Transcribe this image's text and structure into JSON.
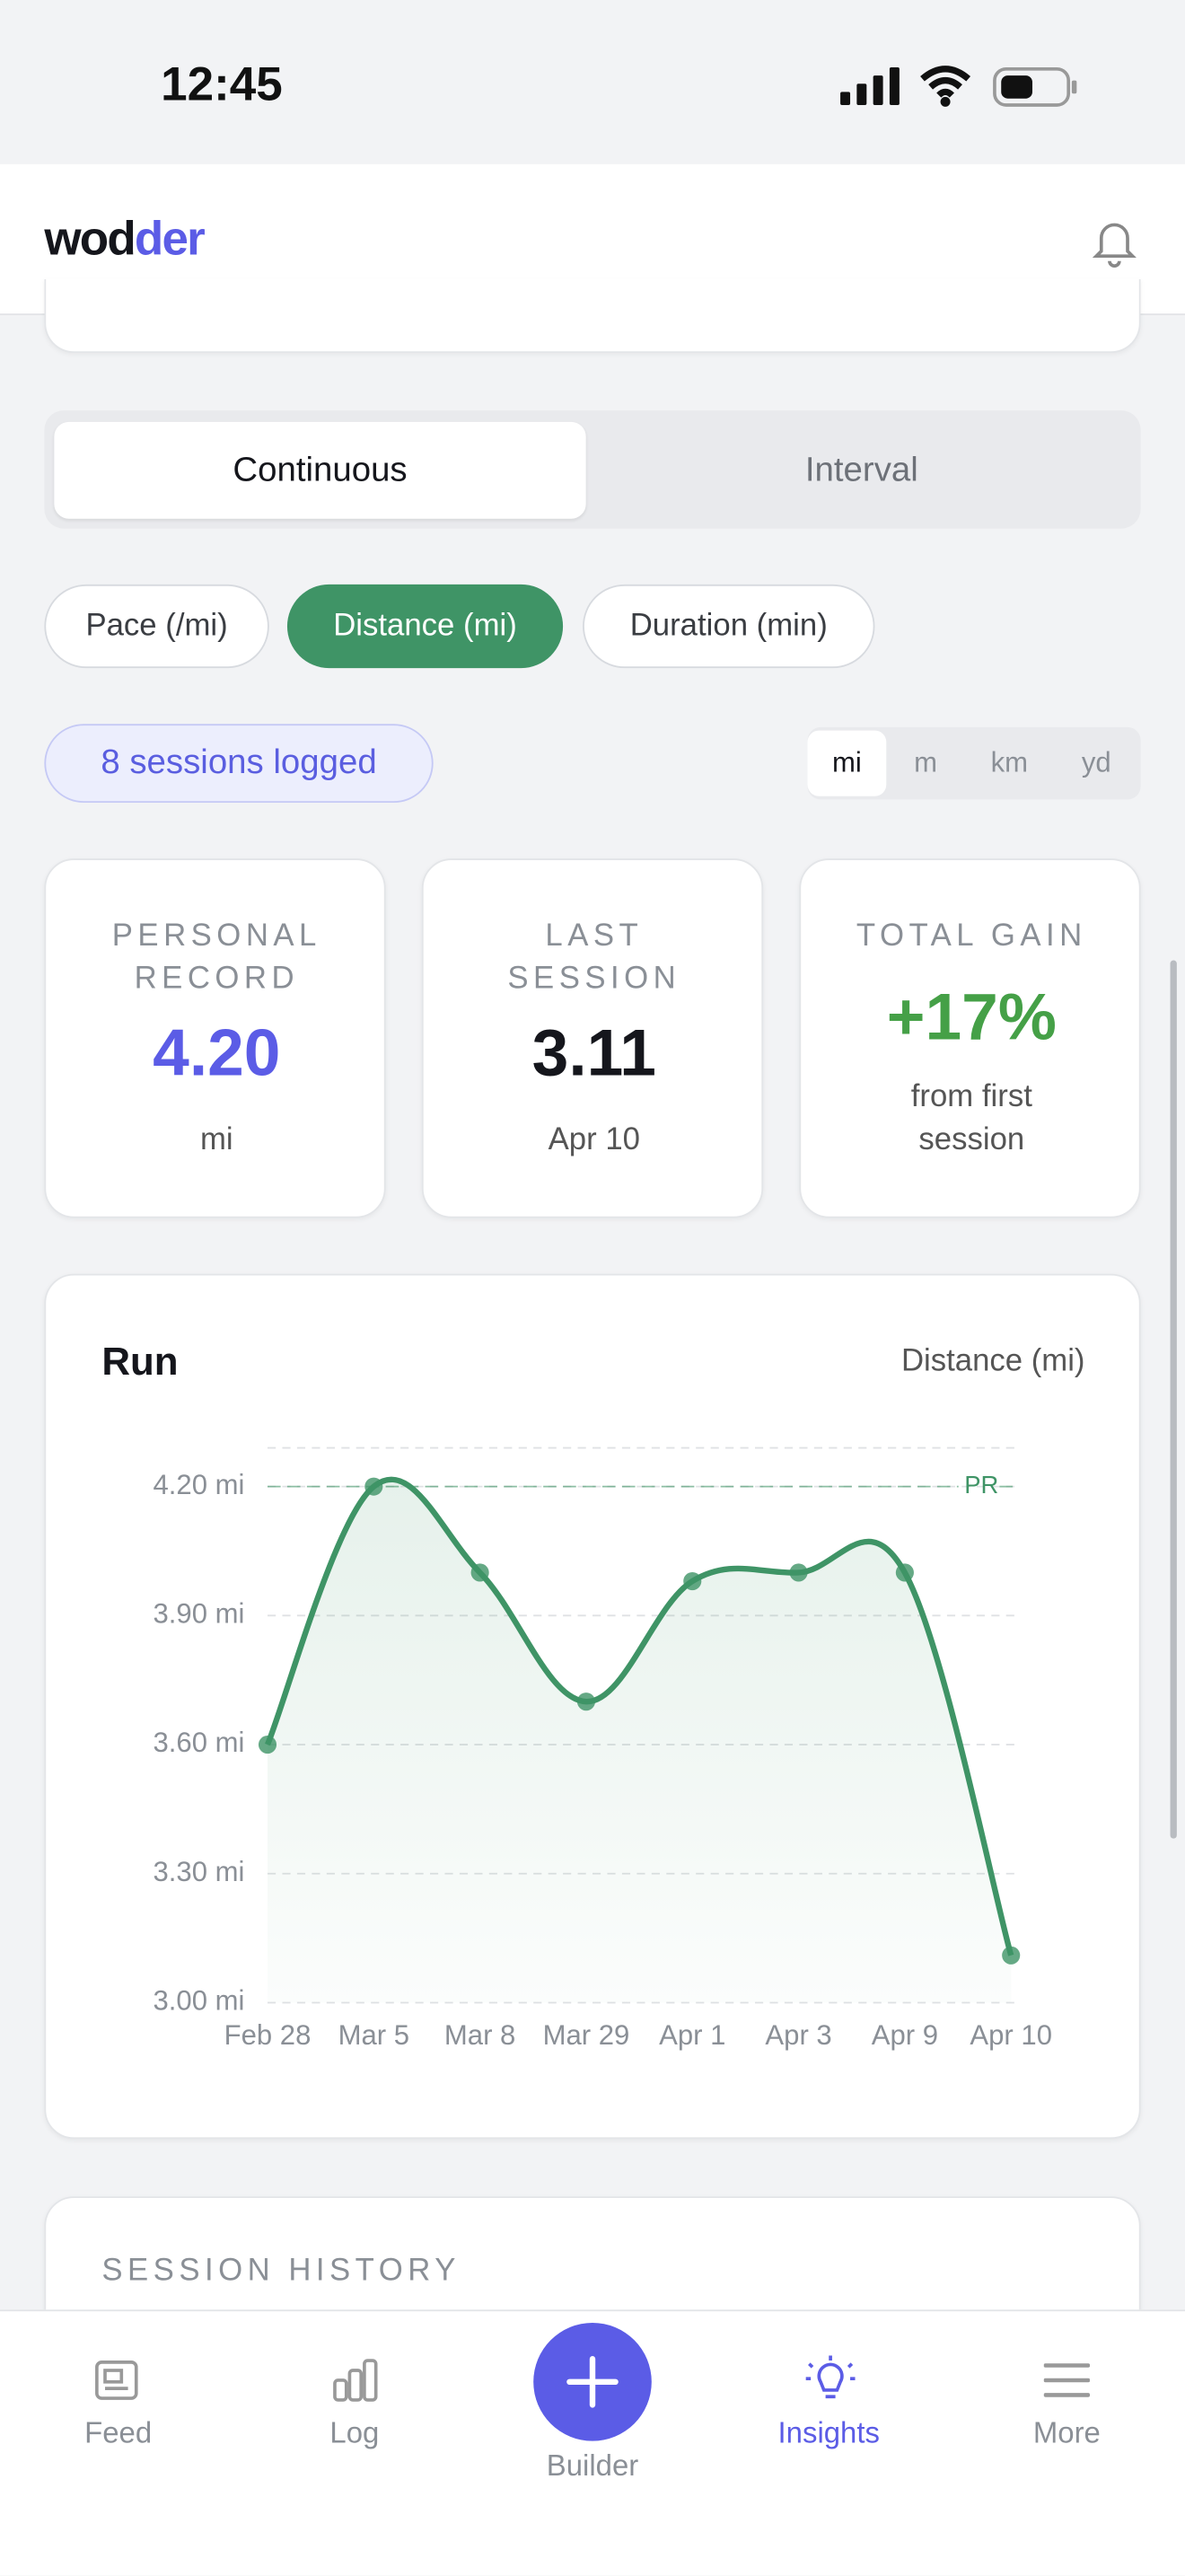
{
  "status_bar": {
    "time": "12:45"
  },
  "header": {
    "logo_parts": [
      "wod",
      "der"
    ]
  },
  "mode_tabs": [
    "Continuous",
    "Interval"
  ],
  "metric_pills": [
    "Pace (/mi)",
    "Distance (mi)",
    "Duration (min)"
  ],
  "sessions_badge": "8 sessions logged",
  "unit_tabs": [
    "mi",
    "m",
    "km",
    "yd"
  ],
  "stat_cards": [
    {
      "label": "PERSONAL RECORD",
      "value": "4.20",
      "sub": "mi"
    },
    {
      "label": "LAST SESSION",
      "value": "3.11",
      "sub": "Apr 10"
    },
    {
      "label": "TOTAL GAIN",
      "value": "+17%",
      "sub": "from first session"
    }
  ],
  "chart_data": {
    "type": "line",
    "title": "Run",
    "subtitle": "Distance (mi)",
    "categories": [
      "Feb 28",
      "Mar 5",
      "Mar 8",
      "Mar 29",
      "Apr 1",
      "Apr 3",
      "Apr 9",
      "Apr 10"
    ],
    "values": [
      3.6,
      4.2,
      4.0,
      3.7,
      3.98,
      4.0,
      4.0,
      3.11
    ],
    "color": "#3f9466",
    "ylim": [
      3.0,
      4.29
    ],
    "yticks": [
      {
        "value": 3.0,
        "label": "3.00 mi"
      },
      {
        "value": 3.3,
        "label": "3.30 mi"
      },
      {
        "value": 3.6,
        "label": "3.60 mi"
      },
      {
        "value": 3.9,
        "label": "3.90 mi"
      },
      {
        "value": 4.2,
        "label": "4.20 mi"
      }
    ],
    "pr_line": {
      "value": 4.2,
      "label": "PR"
    },
    "grid": true
  },
  "session_history": {
    "title": "SESSION HISTORY"
  },
  "bottom_nav": [
    "Feed",
    "Log",
    "Builder",
    "Insights",
    "More"
  ]
}
